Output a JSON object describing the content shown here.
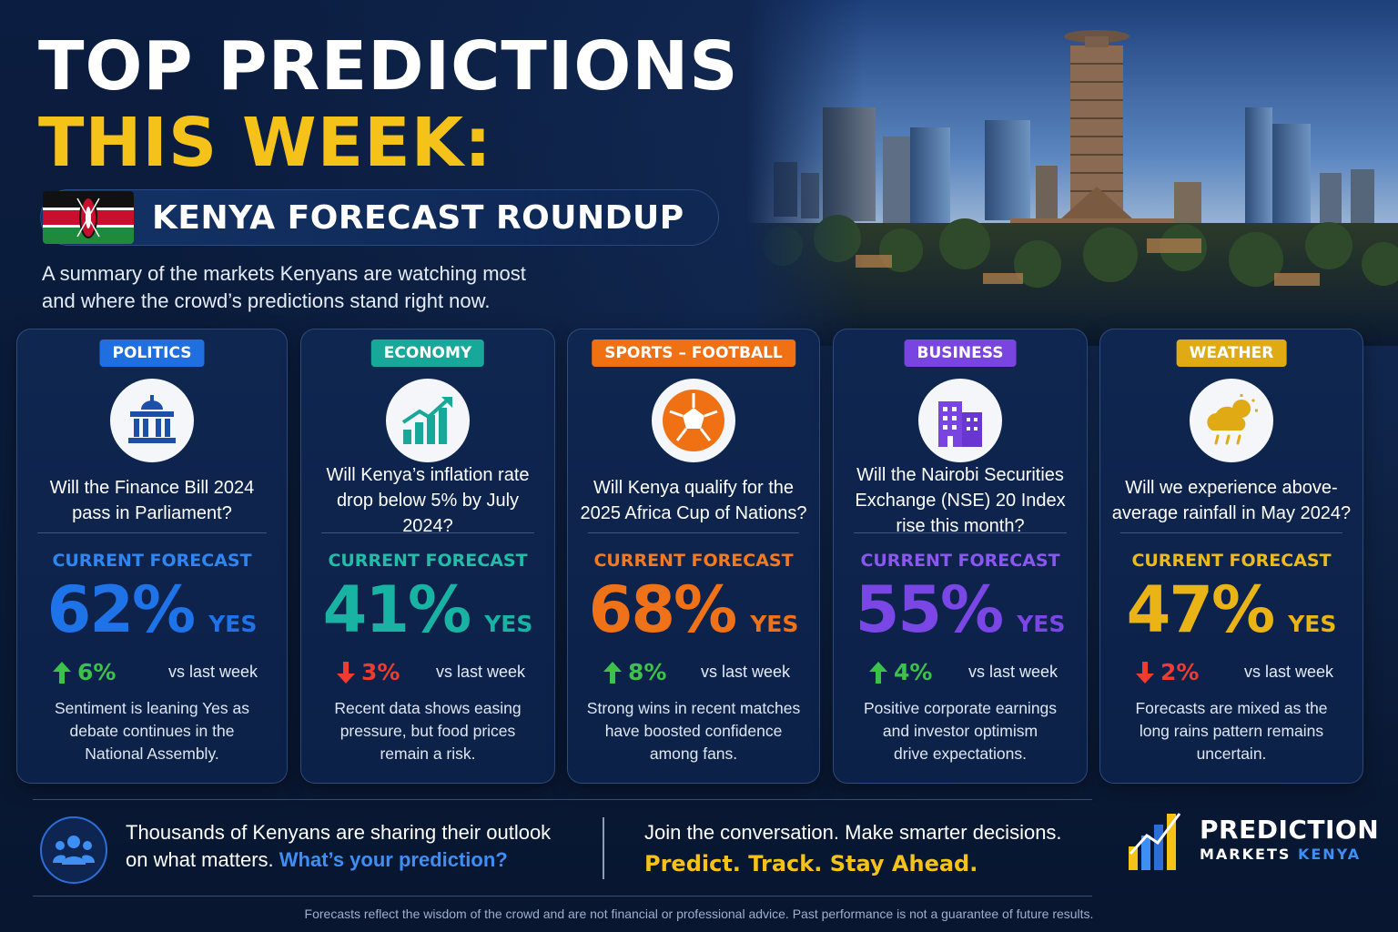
{
  "header": {
    "title_line1": "TOP PREDICTIONS",
    "title_line2": "THIS WEEK:",
    "subtitle": "KENYA FORECAST ROUNDUP",
    "intro_line1": "A summary of the markets Kenyans are watching most",
    "intro_line2": "and where the crowd’s predictions stand right now."
  },
  "forecast_label": "CURRENT FORECAST",
  "yes_label": "YES",
  "vs_label": "vs last week",
  "cards": [
    {
      "category": "POLITICS",
      "color": "#1f6fe0",
      "icon": "parliament-icon",
      "question_line1": "Will the Finance Bill 2024",
      "question_line2": "pass in Parliament?",
      "question_line3": "",
      "forecast": "62%",
      "change": "6%",
      "direction": "up",
      "desc_line1": "Sentiment is leaning Yes as",
      "desc_line2": "debate continues in the",
      "desc_line3": "National Assembly."
    },
    {
      "category": "ECONOMY",
      "color": "#17a89a",
      "icon": "growth-chart-icon",
      "question_line1": "Will Kenya’s inflation rate",
      "question_line2": "drop below 5% by July 2024?",
      "question_line3": "",
      "forecast": "41%",
      "change": "3%",
      "direction": "down",
      "desc_line1": "Recent data shows easing",
      "desc_line2": "pressure, but food prices",
      "desc_line3": "remain a risk."
    },
    {
      "category": "SPORTS – FOOTBALL",
      "color": "#f07014",
      "icon": "football-icon",
      "question_line1": "Will Kenya qualify for the",
      "question_line2": "2025 Africa Cup of Nations?",
      "question_line3": "",
      "forecast": "68%",
      "change": "8%",
      "direction": "up",
      "desc_line1": "Strong wins in recent matches",
      "desc_line2": "have boosted confidence",
      "desc_line3": "among fans."
    },
    {
      "category": "BUSINESS",
      "color": "#7a44e0",
      "icon": "office-building-icon",
      "question_line1": "Will the Nairobi Securities",
      "question_line2": "Exchange (NSE) 20 Index",
      "question_line3": "rise this month?",
      "forecast": "55%",
      "change": "4%",
      "direction": "up",
      "desc_line1": "Positive corporate earnings",
      "desc_line2": "and investor optimism",
      "desc_line3": "drive expectations."
    },
    {
      "category": "WEATHER",
      "color": "#e0aa14",
      "icon": "rain-cloud-icon",
      "question_line1": "Will we experience above-",
      "question_line2": "average rainfall in May 2024?",
      "question_line3": "",
      "forecast": "47%",
      "change": "2%",
      "direction": "down",
      "desc_line1": "Forecasts are mixed as the",
      "desc_line2": "long rains pattern remains",
      "desc_line3": "uncertain."
    }
  ],
  "colors": {
    "percent": [
      "#1f73e8",
      "#19b3a3",
      "#f07218",
      "#7a46e6",
      "#eab416"
    ],
    "label": [
      "#2f86f0",
      "#22bca9",
      "#f47a20",
      "#8a58ee",
      "#edba1c"
    ],
    "up": "#3cc14a",
    "down": "#ef3b30"
  },
  "footer": {
    "outlook_line1": "Thousands of Kenyans are sharing their outlook",
    "outlook_line2_a": "on what matters.",
    "outlook_line2_b": "What’s your prediction?",
    "join": "Join the conversation. Make smarter decisions.",
    "tagline": "Predict. Track. Stay Ahead.",
    "brand_line1": "PREDICTION",
    "brand_line2_a": "MARKETS",
    "brand_line2_b": "KENYA",
    "disclaimer": "Forecasts reflect the wisdom of the crowd and are not financial or professional advice. Past performance is not a guarantee of future results."
  }
}
